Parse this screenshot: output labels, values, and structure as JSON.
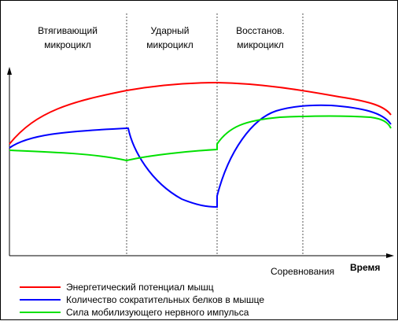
{
  "phases": [
    {
      "label_line1": "Втягивающий",
      "label_line2": "микроцикл"
    },
    {
      "label_line1": "Ударный",
      "label_line2": "микроцикл"
    },
    {
      "label_line1": "Восстанов.",
      "label_line2": "микроцикл"
    }
  ],
  "axes": {
    "x_label": "Время",
    "marker_label": "Соревнования"
  },
  "legend": [
    {
      "label": "Энергетический потенциал мышц",
      "color": "#ff0000"
    },
    {
      "label": "Количество сократительных белков в мышце",
      "color": "#0000ff"
    },
    {
      "label": "Сила мобилизующего нервного импульса",
      "color": "#00e000"
    }
  ],
  "colors": {
    "energy": "#ff0000",
    "proteins": "#0000ff",
    "impulse": "#00e000",
    "axis": "#000000"
  }
}
